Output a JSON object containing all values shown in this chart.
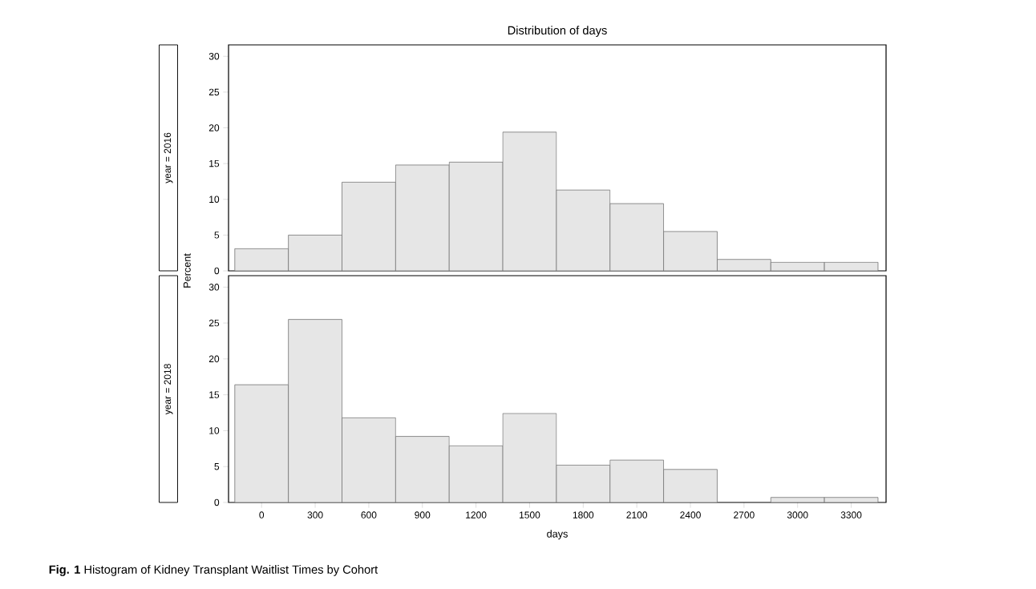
{
  "chart_data": [
    {
      "type": "histogram",
      "title": "Distribution of days",
      "subtitle": "year = 2016",
      "ylabel": "Percent",
      "bins": [
        -150,
        150,
        450,
        750,
        1050,
        1350,
        1650,
        1950,
        2250,
        2550,
        2850,
        3150,
        3450
      ],
      "values": [
        3.1,
        5.0,
        12.4,
        14.8,
        15.2,
        19.4,
        11.3,
        9.4,
        5.5,
        1.6,
        1.2,
        1.2
      ],
      "color": "#e6e6e6",
      "xlim": [
        -185,
        3495
      ],
      "ylim": [
        0,
        31.6
      ],
      "yticks": [
        0,
        5,
        10,
        15,
        20,
        25,
        30
      ],
      "tick_labels": "y"
    },
    {
      "type": "histogram",
      "subtitle": "year = 2018",
      "xlabel": "days",
      "bins": [
        -150,
        150,
        450,
        750,
        1050,
        1350,
        1650,
        1950,
        2250,
        2550,
        2850,
        3150,
        3450
      ],
      "values": [
        16.4,
        25.5,
        11.8,
        9.2,
        7.9,
        12.4,
        5.2,
        5.9,
        4.6,
        0,
        0.7,
        0.7
      ],
      "color": "#e6e6e6",
      "xlim": [
        -185,
        3495
      ],
      "ylim": [
        0,
        31.6
      ],
      "yticks": [
        0,
        5,
        10,
        15,
        20,
        25,
        30
      ],
      "xticks": [
        0,
        300,
        600,
        900,
        1200,
        1500,
        1800,
        2100,
        2400,
        2700,
        3000,
        3300
      ],
      "annotations": [
        "**Fig. 1** Histogram of Kidney Transplant Waitlist Times by Cohort"
      ]
    }
  ]
}
